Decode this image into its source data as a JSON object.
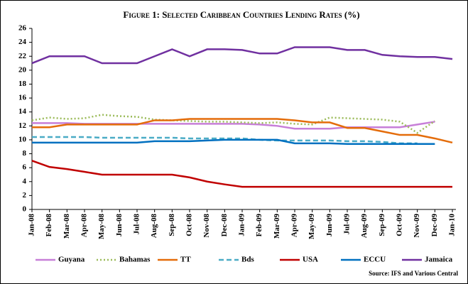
{
  "chart_data": {
    "type": "line",
    "title": "Figure 1: Selected Caribbean Countries Lending Rates (%)",
    "source": "Source: IFS and Various Central",
    "categories": [
      "Jan-08",
      "Feb-08",
      "Mar-08",
      "Apr-08",
      "May-08",
      "Jun-08",
      "Jul-08",
      "Aug-08",
      "Sep-08",
      "Oct-08",
      "Nov-08",
      "Dec-08",
      "Jan-09",
      "Feb-09",
      "Mar-09",
      "Apr-09",
      "May-09",
      "Jun-09",
      "Jul-09",
      "Aug-09",
      "Sep-09",
      "Oct-09",
      "Nov-09",
      "Dec-09",
      "Jan-10"
    ],
    "ylim": [
      0,
      26
    ],
    "yticks": [
      0,
      2,
      4,
      6,
      8,
      10,
      12,
      14,
      16,
      18,
      20,
      22,
      24,
      26
    ],
    "legend": "bottom",
    "series": [
      {
        "name": "Guyana",
        "color": "#c77fd8",
        "dash": "solid",
        "values": [
          12.4,
          12.4,
          12.4,
          12.3,
          12.3,
          12.3,
          12.3,
          12.3,
          12.3,
          12.3,
          12.3,
          12.3,
          12.3,
          12.2,
          12,
          11.6,
          11.6,
          11.6,
          11.8,
          11.8,
          11.8,
          11.8,
          12.2,
          12.6,
          null
        ]
      },
      {
        "name": "Bahamas",
        "color": "#9bbb59",
        "dash": "dotted",
        "values": [
          12.8,
          13.2,
          13.0,
          13.1,
          13.6,
          13.4,
          13.3,
          12.9,
          12.8,
          12.7,
          12.6,
          12.6,
          12.5,
          12.4,
          12.5,
          12.3,
          12.2,
          13.2,
          13.1,
          13.0,
          12.9,
          12.6,
          11.0,
          12.7,
          null
        ]
      },
      {
        "name": "TT",
        "color": "#e46c0a",
        "dash": "solid",
        "values": [
          11.8,
          11.8,
          12.2,
          12.2,
          12.2,
          12.2,
          12.2,
          12.8,
          12.8,
          13,
          13,
          13,
          13,
          13,
          13,
          12.8,
          12.5,
          12.5,
          11.7,
          11.7,
          11.2,
          10.7,
          10.7,
          10.2,
          9.6
        ]
      },
      {
        "name": "Bds",
        "color": "#4bacc6",
        "dash": "dashed",
        "values": [
          10.4,
          10.4,
          10.4,
          10.4,
          10.3,
          10.3,
          10.3,
          10.3,
          10.3,
          10.2,
          10.2,
          10.2,
          10.2,
          10.0,
          9.9,
          9.9,
          9.9,
          9.9,
          9.8,
          9.8,
          9.7,
          9.5,
          9.5,
          null,
          null
        ]
      },
      {
        "name": "USA",
        "color": "#c00000",
        "dash": "solid",
        "values": [
          7,
          6.1,
          5.8,
          5.4,
          5,
          5,
          5,
          5,
          5,
          4.6,
          4,
          3.6,
          3.25,
          3.25,
          3.25,
          3.25,
          3.25,
          3.25,
          3.25,
          3.25,
          3.25,
          3.25,
          3.25,
          3.25,
          3.25
        ]
      },
      {
        "name": "ECCU",
        "color": "#0070c0",
        "dash": "solid",
        "values": [
          9.6,
          9.6,
          9.6,
          9.6,
          9.6,
          9.6,
          9.6,
          9.8,
          9.8,
          9.8,
          9.9,
          10,
          10,
          10,
          10,
          9.5,
          9.5,
          9.5,
          9.4,
          9.4,
          9.4,
          9.4,
          9.4,
          9.4,
          null
        ]
      },
      {
        "name": "Jamaica",
        "color": "#7030a0",
        "dash": "solid",
        "values": [
          21,
          22,
          22,
          22,
          21,
          21,
          21,
          22,
          23,
          22,
          23,
          23,
          22.9,
          22.4,
          22.4,
          23.3,
          23.3,
          23.3,
          22.9,
          22.9,
          22.2,
          22,
          21.9,
          21.9,
          21.6
        ]
      }
    ]
  }
}
